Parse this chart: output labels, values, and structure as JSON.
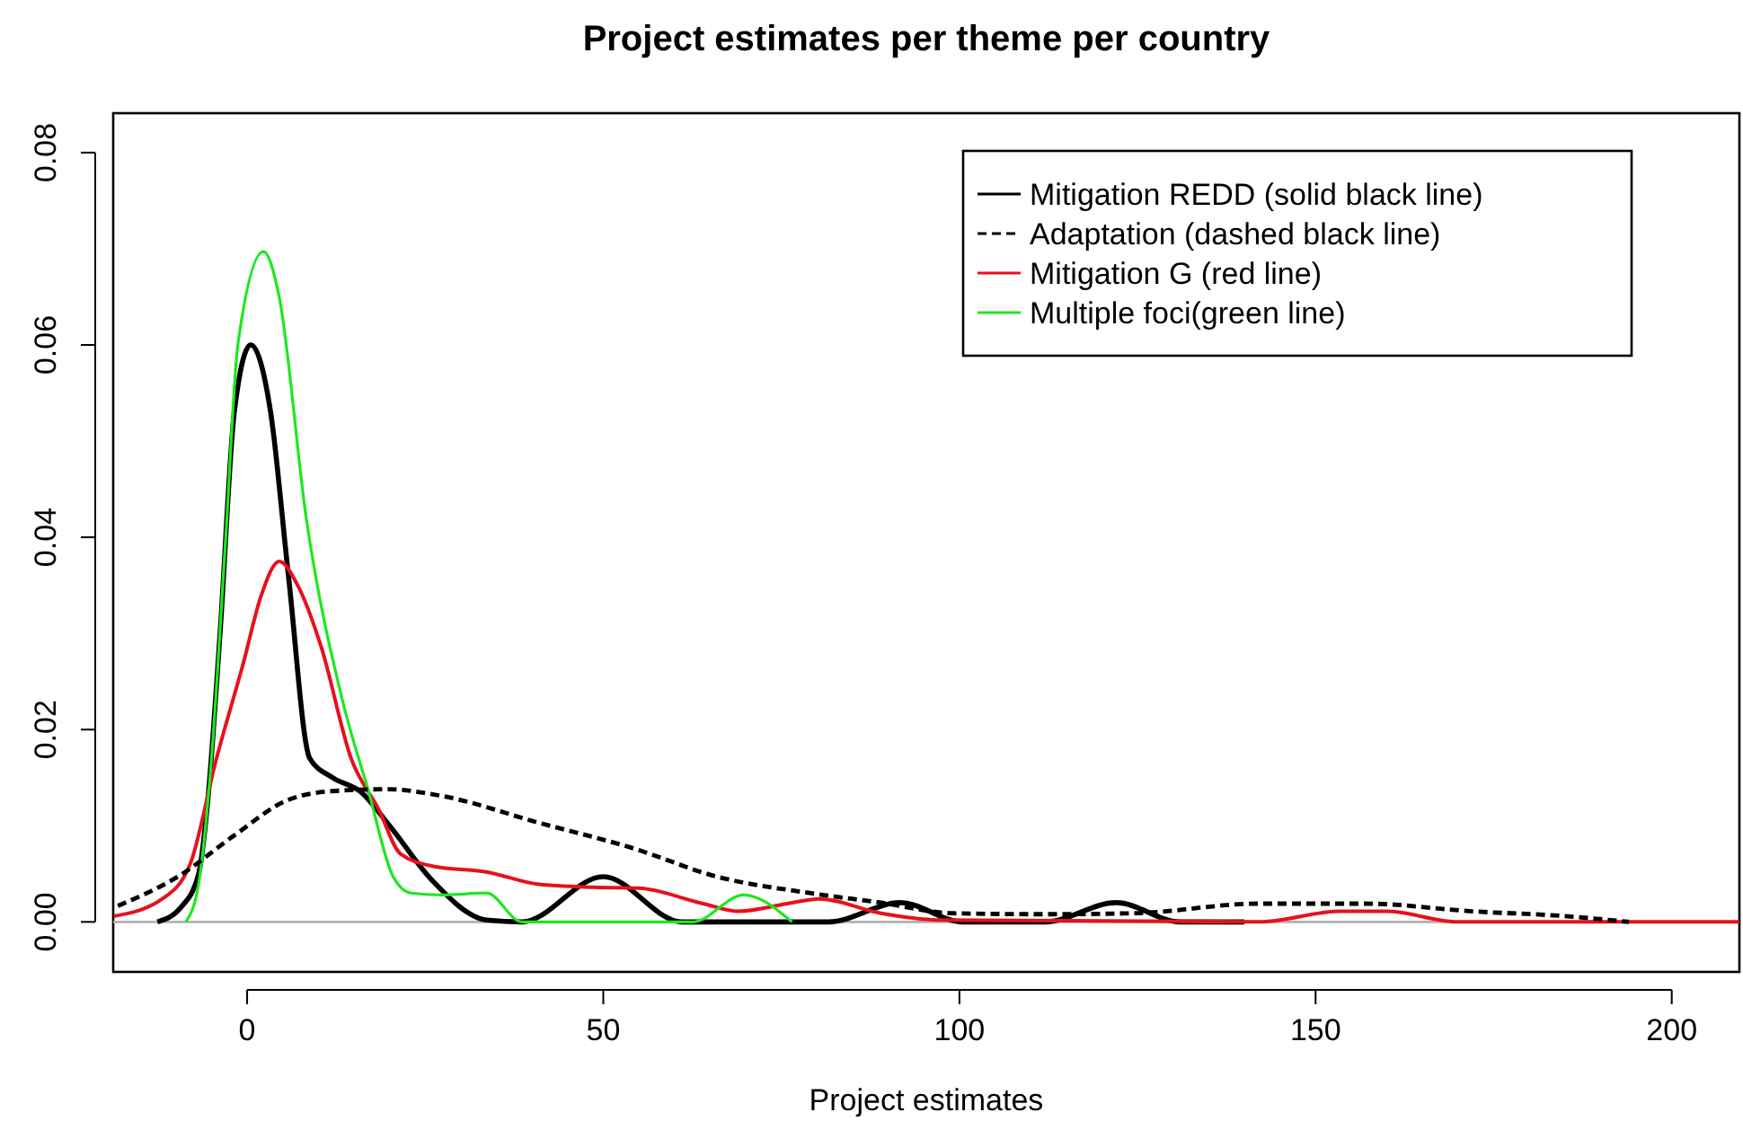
{
  "chart_data": {
    "type": "line",
    "title": "Project estimates per theme per country",
    "xlabel": "Project estimates",
    "xlim": [
      -18.8,
      209.5
    ],
    "xticks": [
      0,
      50,
      100,
      150,
      200
    ],
    "ylim": [
      -0.0052,
      0.0841
    ],
    "yticks": [
      {
        "value": 0,
        "label": "0.00"
      },
      {
        "value": 0.02,
        "label": "0.02"
      },
      {
        "value": 0.04,
        "label": "0.04"
      },
      {
        "value": 0.06,
        "label": "0.06"
      },
      {
        "value": 0.08,
        "label": "0.08"
      }
    ],
    "grid": false,
    "legend": "top right",
    "marker": "none",
    "ref_lines": [
      {
        "axis": "y",
        "value": 0,
        "color": "#b0b0b0"
      }
    ],
    "series": [
      {
        "name": "Mitigation REDD (solid black line)",
        "color": "#000000",
        "line_style": "solid",
        "x": [
          -12.6,
          -9.3,
          -6.8,
          -5.6,
          -3.8,
          -1.8,
          0.5,
          3.3,
          5.8,
          8.8,
          12,
          16,
          20,
          26,
          33.6,
          38.6,
          50,
          61,
          81.6,
          91.7,
          100.5,
          112,
          122,
          131,
          140
        ],
        "values": [
          0,
          0.0015,
          0.005,
          0.012,
          0.03,
          0.053,
          0.06,
          0.053,
          0.036,
          0.017,
          0.015,
          0.0135,
          0.01,
          0.0043,
          0.0002,
          0,
          0.0047,
          0,
          0,
          0.002,
          0,
          0,
          0.002,
          0,
          0
        ]
      },
      {
        "name": "Adaptation (dashed black line)",
        "color": "#000000",
        "line_style": "dashed",
        "x": [
          -18.7,
          -9.3,
          -1.8,
          5.8,
          12,
          19.7,
          27.3,
          41,
          54,
          66,
          79,
          89,
          99,
          112,
          124.5,
          142,
          157,
          172,
          185,
          194
        ],
        "values": [
          0.0015,
          0.0049,
          0.009,
          0.0127,
          0.0136,
          0.0138,
          0.0131,
          0.0103,
          0.0077,
          0.0047,
          0.003,
          0.002,
          0.0009,
          0.0008,
          0.0009,
          0.0019,
          0.0019,
          0.0011,
          0.0006,
          0
        ]
      },
      {
        "name": "Mitigation G (red line)",
        "color": "#e8101e",
        "line_style": "solid",
        "x": [
          -18.7,
          -11.9,
          -8,
          -4.3,
          -0.5,
          2,
          4.5,
          7.1,
          10.4,
          14.6,
          18.4,
          21.5,
          26,
          33.6,
          41,
          48.7,
          55,
          64,
          69,
          76.5,
          80.3,
          89,
          97,
          142,
          153.5,
          160,
          170,
          209.5
        ],
        "values": [
          0.0006,
          0.0024,
          0.006,
          0.017,
          0.027,
          0.034,
          0.0375,
          0.035,
          0.0286,
          0.017,
          0.0118,
          0.0071,
          0.0058,
          0.0052,
          0.0039,
          0.0036,
          0.0035,
          0.0019,
          0.0011,
          0.002,
          0.0024,
          0.0009,
          0.0002,
          0,
          0.0011,
          0.0011,
          0,
          0
        ]
      },
      {
        "name": "Multiple foci(green line)",
        "color": "#1ee81e",
        "line_style": "solid",
        "x": [
          -8.6,
          -6.8,
          -5,
          -3,
          -1.3,
          2.3,
          4.5,
          8.3,
          13.4,
          17,
          20.5,
          23,
          27.3,
          33.6,
          38.6,
          62.6,
          69.7,
          76.5
        ],
        "values": [
          0,
          0.004,
          0.017,
          0.04,
          0.06,
          0.0697,
          0.065,
          0.042,
          0.023,
          0.0137,
          0.0047,
          0.003,
          0.0028,
          0.003,
          0,
          0,
          0.0028,
          0
        ]
      }
    ]
  }
}
